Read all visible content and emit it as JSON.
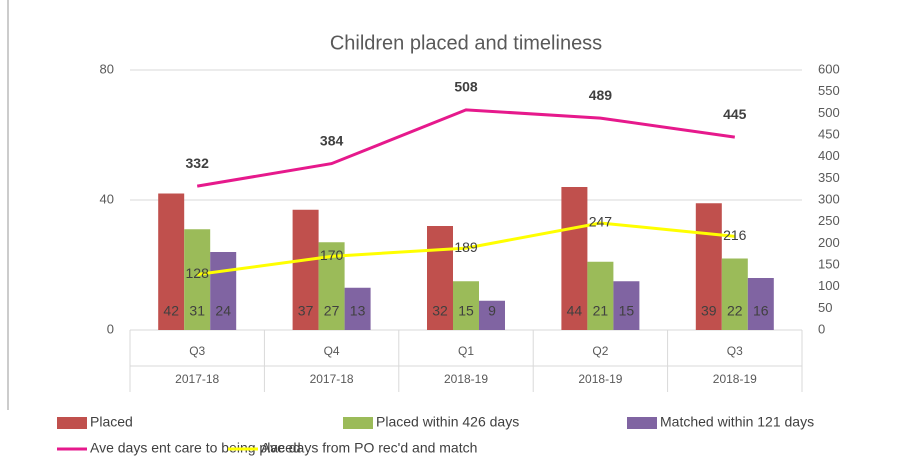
{
  "chart_data": {
    "type": "combo",
    "title": "Children placed and timeliness",
    "categories": [
      "Q3",
      "Q4",
      "Q1",
      "Q2",
      "Q3"
    ],
    "category_groups": [
      "2017-18",
      "2017-18",
      "2018-19",
      "2018-19",
      "2018-19"
    ],
    "ylim": [
      0,
      80
    ],
    "yticks": [
      0,
      40,
      80
    ],
    "y2lim": [
      0,
      600
    ],
    "y2ticks": [
      0,
      50,
      100,
      150,
      200,
      250,
      300,
      350,
      400,
      450,
      500,
      550,
      600
    ],
    "grid": true,
    "legend": "bottom",
    "series": [
      {
        "name": "Placed",
        "type": "bar",
        "color": "#c0504d",
        "values": [
          42,
          37,
          32,
          44,
          39
        ]
      },
      {
        "name": "Placed within 426 days",
        "type": "bar",
        "color": "#9bbb59",
        "values": [
          31,
          27,
          15,
          21,
          22
        ]
      },
      {
        "name": "Matched within 121 days",
        "type": "bar",
        "color": "#8064a2",
        "values": [
          24,
          13,
          9,
          15,
          16
        ]
      },
      {
        "name": "Ave days ent care to being placed",
        "type": "line",
        "axis": "y2",
        "color": "#e6198c",
        "values": [
          332,
          384,
          508,
          489,
          445
        ]
      },
      {
        "name": "Ave days from PO rec'd and match",
        "type": "line",
        "axis": "y2",
        "color": "#ffff00",
        "values": [
          128,
          170,
          189,
          247,
          216
        ]
      }
    ]
  }
}
